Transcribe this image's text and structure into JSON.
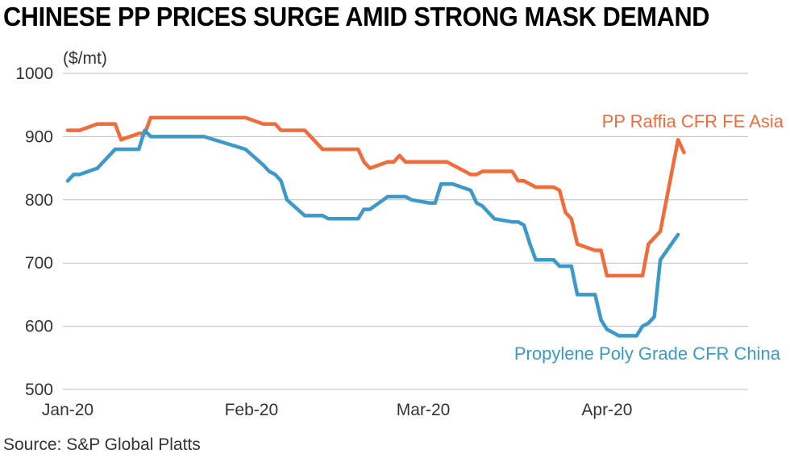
{
  "title": "CHINESE PP PRICES SURGE AMID STRONG MASK DEMAND",
  "source": "Source: S&P Global Platts",
  "chart_data": {
    "type": "line",
    "unit_label": "($/mt)",
    "ylim": [
      500,
      1000
    ],
    "yticks": [
      500,
      600,
      700,
      800,
      900,
      1000
    ],
    "xlim": [
      "2020-01-01",
      "2020-04-24"
    ],
    "xticks": [
      {
        "date": "2020-01-01",
        "label": "Jan-20"
      },
      {
        "date": "2020-02-01",
        "label": "Feb-20"
      },
      {
        "date": "2020-03-01",
        "label": "Mar-20"
      },
      {
        "date": "2020-04-01",
        "label": "Apr-20"
      }
    ],
    "grid": "horizontal",
    "series": [
      {
        "name": "PP Raffia CFR FE Asia",
        "color": "#f26b3a",
        "points": [
          [
            "2020-01-01",
            910
          ],
          [
            "2020-01-02",
            910
          ],
          [
            "2020-01-03",
            910
          ],
          [
            "2020-01-06",
            920
          ],
          [
            "2020-01-07",
            920
          ],
          [
            "2020-01-08",
            920
          ],
          [
            "2020-01-09",
            920
          ],
          [
            "2020-01-10",
            895
          ],
          [
            "2020-01-13",
            905
          ],
          [
            "2020-01-14",
            905
          ],
          [
            "2020-01-15",
            930
          ],
          [
            "2020-01-16",
            930
          ],
          [
            "2020-01-17",
            930
          ],
          [
            "2020-01-20",
            930
          ],
          [
            "2020-01-21",
            930
          ],
          [
            "2020-01-22",
            930
          ],
          [
            "2020-01-23",
            930
          ],
          [
            "2020-01-24",
            930
          ],
          [
            "2020-01-31",
            930
          ],
          [
            "2020-02-03",
            920
          ],
          [
            "2020-02-04",
            920
          ],
          [
            "2020-02-05",
            920
          ],
          [
            "2020-02-06",
            910
          ],
          [
            "2020-02-07",
            910
          ],
          [
            "2020-02-10",
            910
          ],
          [
            "2020-02-11",
            900
          ],
          [
            "2020-02-12",
            890
          ],
          [
            "2020-02-13",
            880
          ],
          [
            "2020-02-14",
            880
          ],
          [
            "2020-02-17",
            880
          ],
          [
            "2020-02-18",
            880
          ],
          [
            "2020-02-19",
            880
          ],
          [
            "2020-02-20",
            860
          ],
          [
            "2020-02-21",
            850
          ],
          [
            "2020-02-24",
            860
          ],
          [
            "2020-02-25",
            860
          ],
          [
            "2020-02-26",
            870
          ],
          [
            "2020-02-27",
            860
          ],
          [
            "2020-02-28",
            860
          ],
          [
            "2020-03-02",
            860
          ],
          [
            "2020-03-03",
            860
          ],
          [
            "2020-03-04",
            860
          ],
          [
            "2020-03-05",
            860
          ],
          [
            "2020-03-06",
            855
          ],
          [
            "2020-03-09",
            840
          ],
          [
            "2020-03-10",
            840
          ],
          [
            "2020-03-11",
            845
          ],
          [
            "2020-03-12",
            845
          ],
          [
            "2020-03-13",
            845
          ],
          [
            "2020-03-16",
            845
          ],
          [
            "2020-03-17",
            830
          ],
          [
            "2020-03-18",
            830
          ],
          [
            "2020-03-19",
            825
          ],
          [
            "2020-03-20",
            820
          ],
          [
            "2020-03-23",
            820
          ],
          [
            "2020-03-24",
            815
          ],
          [
            "2020-03-25",
            780
          ],
          [
            "2020-03-26",
            770
          ],
          [
            "2020-03-27",
            730
          ],
          [
            "2020-03-30",
            720
          ],
          [
            "2020-03-31",
            720
          ],
          [
            "2020-04-01",
            680
          ],
          [
            "2020-04-02",
            680
          ],
          [
            "2020-04-03",
            680
          ],
          [
            "2020-04-06",
            680
          ],
          [
            "2020-04-07",
            680
          ],
          [
            "2020-04-08",
            730
          ],
          [
            "2020-04-09",
            740
          ],
          [
            "2020-04-10",
            750
          ],
          [
            "2020-04-13",
            895
          ],
          [
            "2020-04-14",
            875
          ]
        ]
      },
      {
        "name": "Propylene Poly Grade CFR China",
        "color": "#3b9ac9",
        "points": [
          [
            "2020-01-01",
            830
          ],
          [
            "2020-01-02",
            840
          ],
          [
            "2020-01-03",
            840
          ],
          [
            "2020-01-06",
            850
          ],
          [
            "2020-01-07",
            860
          ],
          [
            "2020-01-08",
            870
          ],
          [
            "2020-01-09",
            880
          ],
          [
            "2020-01-10",
            880
          ],
          [
            "2020-01-13",
            880
          ],
          [
            "2020-01-14",
            910
          ],
          [
            "2020-01-15",
            900
          ],
          [
            "2020-01-16",
            900
          ],
          [
            "2020-01-17",
            900
          ],
          [
            "2020-01-20",
            900
          ],
          [
            "2020-01-21",
            900
          ],
          [
            "2020-01-22",
            900
          ],
          [
            "2020-01-23",
            900
          ],
          [
            "2020-01-24",
            900
          ],
          [
            "2020-01-31",
            880
          ],
          [
            "2020-02-03",
            855
          ],
          [
            "2020-02-04",
            845
          ],
          [
            "2020-02-05",
            840
          ],
          [
            "2020-02-06",
            830
          ],
          [
            "2020-02-07",
            800
          ],
          [
            "2020-02-10",
            775
          ],
          [
            "2020-02-11",
            775
          ],
          [
            "2020-02-12",
            775
          ],
          [
            "2020-02-13",
            775
          ],
          [
            "2020-02-14",
            770
          ],
          [
            "2020-02-17",
            770
          ],
          [
            "2020-02-18",
            770
          ],
          [
            "2020-02-19",
            770
          ],
          [
            "2020-02-20",
            785
          ],
          [
            "2020-02-21",
            785
          ],
          [
            "2020-02-24",
            805
          ],
          [
            "2020-02-25",
            805
          ],
          [
            "2020-02-26",
            805
          ],
          [
            "2020-02-27",
            805
          ],
          [
            "2020-02-28",
            800
          ],
          [
            "2020-03-02",
            795
          ],
          [
            "2020-03-03",
            795
          ],
          [
            "2020-03-04",
            825
          ],
          [
            "2020-03-05",
            825
          ],
          [
            "2020-03-06",
            825
          ],
          [
            "2020-03-09",
            815
          ],
          [
            "2020-03-10",
            795
          ],
          [
            "2020-03-11",
            790
          ],
          [
            "2020-03-12",
            780
          ],
          [
            "2020-03-13",
            770
          ],
          [
            "2020-03-16",
            765
          ],
          [
            "2020-03-17",
            765
          ],
          [
            "2020-03-18",
            760
          ],
          [
            "2020-03-19",
            730
          ],
          [
            "2020-03-20",
            705
          ],
          [
            "2020-03-23",
            705
          ],
          [
            "2020-03-24",
            695
          ],
          [
            "2020-03-25",
            695
          ],
          [
            "2020-03-26",
            695
          ],
          [
            "2020-03-27",
            650
          ],
          [
            "2020-03-30",
            650
          ],
          [
            "2020-03-31",
            610
          ],
          [
            "2020-04-01",
            595
          ],
          [
            "2020-04-02",
            590
          ],
          [
            "2020-04-03",
            585
          ],
          [
            "2020-04-06",
            585
          ],
          [
            "2020-04-07",
            600
          ],
          [
            "2020-04-08",
            605
          ],
          [
            "2020-04-09",
            615
          ],
          [
            "2020-04-10",
            705
          ],
          [
            "2020-04-13",
            745
          ]
        ]
      }
    ]
  }
}
